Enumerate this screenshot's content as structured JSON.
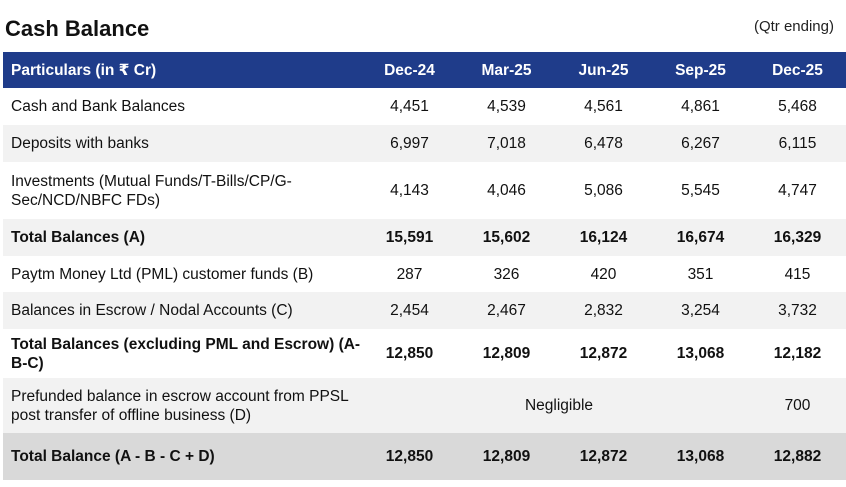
{
  "title": "Cash Balance",
  "note": "(Qtr ending)",
  "header": {
    "particulars": "Particulars (in ₹ Cr)",
    "periods": [
      "Dec-24",
      "Mar-25",
      "Jun-25",
      "Sep-25",
      "Dec-25"
    ]
  },
  "rows": [
    {
      "label": "Cash and Bank Balances",
      "values": [
        "4,451",
        "4,539",
        "4,561",
        "4,861",
        "5,468"
      ]
    },
    {
      "label": "Deposits with banks",
      "values": [
        "6,997",
        "7,018",
        "6,478",
        "6,267",
        "6,115"
      ]
    },
    {
      "label": "Investments (Mutual Funds/T-Bills/CP/G-Sec/NCD/NBFC FDs)",
      "values": [
        "4,143",
        "4,046",
        "5,086",
        "5,545",
        "4,747"
      ]
    },
    {
      "label": "Total Balances (A)",
      "values": [
        "15,591",
        "15,602",
        "16,124",
        "16,674",
        "16,329"
      ]
    },
    {
      "label": "Paytm Money Ltd (PML) customer funds (B)",
      "values": [
        "287",
        "326",
        "420",
        "351",
        "415"
      ]
    },
    {
      "label": "Balances in Escrow / Nodal Accounts (C)",
      "values": [
        "2,454",
        "2,467",
        "2,832",
        "3,254",
        "3,732"
      ]
    },
    {
      "label": "Total Balances (excluding PML and Escrow) (A-B-C)",
      "values": [
        "12,850",
        "12,809",
        "12,872",
        "13,068",
        "12,182"
      ]
    },
    {
      "label": "Prefunded balance in escrow account from PPSL post transfer of offline business (D)",
      "merged": "Negligible",
      "last": "700"
    },
    {
      "label": "Total Balance  (A - B - C + D)",
      "values": [
        "12,850",
        "12,809",
        "12,872",
        "13,068",
        "12,882"
      ]
    }
  ]
}
